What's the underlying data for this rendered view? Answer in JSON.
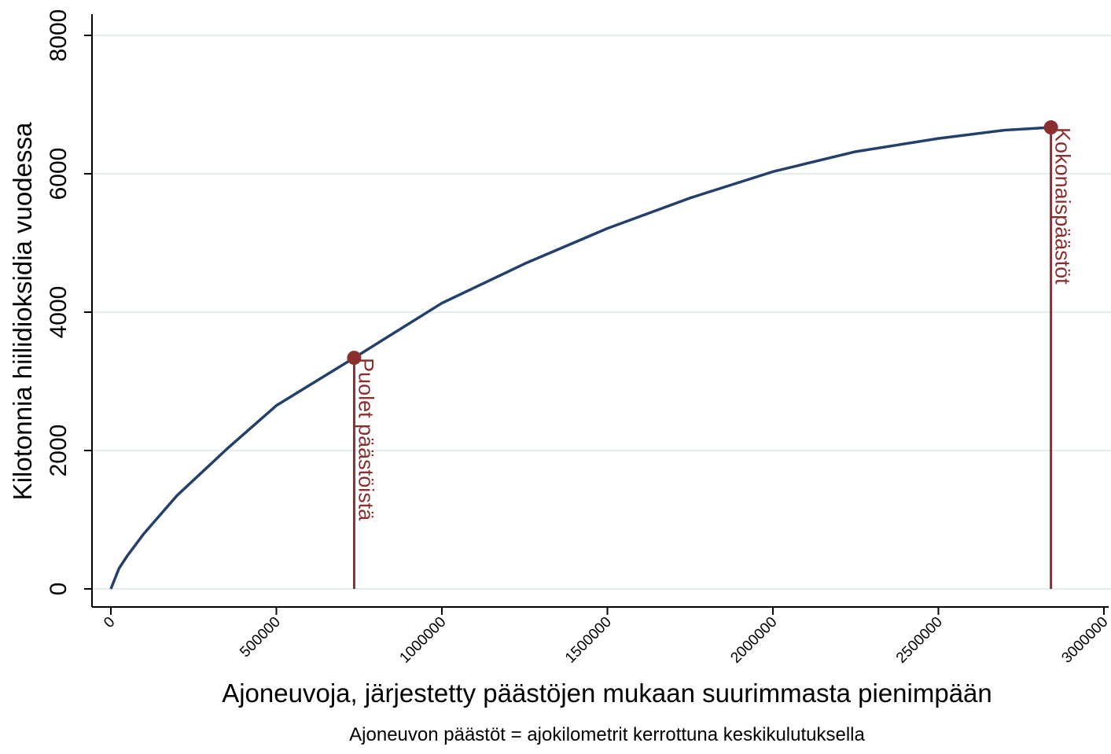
{
  "chart_data": {
    "type": "line",
    "xlabel": "Ajoneuvoja, järjestetty päästöjen mukaan suurimmasta pienimpään",
    "ylabel": "Kilotonnia hiilidioksidia vuodessa",
    "note": "Ajoneuvon päästöt = ajokilometrit kerrottuna keskikulutuksella",
    "x": [
      0,
      25000,
      50000,
      100000,
      200000,
      350000,
      500000,
      735000,
      1000000,
      1250000,
      1500000,
      1750000,
      2000000,
      2250000,
      2500000,
      2700000,
      2840000
    ],
    "series": [
      {
        "color": "#23406b",
        "values": [
          0,
          300,
          480,
          800,
          1350,
          2020,
          2650,
          3340,
          4130,
          4700,
          5210,
          5650,
          6030,
          6320,
          6510,
          6630,
          6670
        ]
      }
    ],
    "annotations": [
      {
        "label": "Puolet päästöistä",
        "x": 735000,
        "y": 3340,
        "color": "#8b2e2e"
      },
      {
        "label": "Kokonaispäästöt",
        "x": 2840000,
        "y": 6670,
        "color": "#8b2e2e"
      }
    ],
    "xlim": [
      0,
      3000000
    ],
    "xticks": [
      0,
      500000,
      1000000,
      1500000,
      2000000,
      2500000,
      3000000
    ],
    "ylim": [
      0,
      8000
    ],
    "yticks": [
      0,
      2000,
      4000,
      6000,
      8000
    ],
    "grid": true
  }
}
